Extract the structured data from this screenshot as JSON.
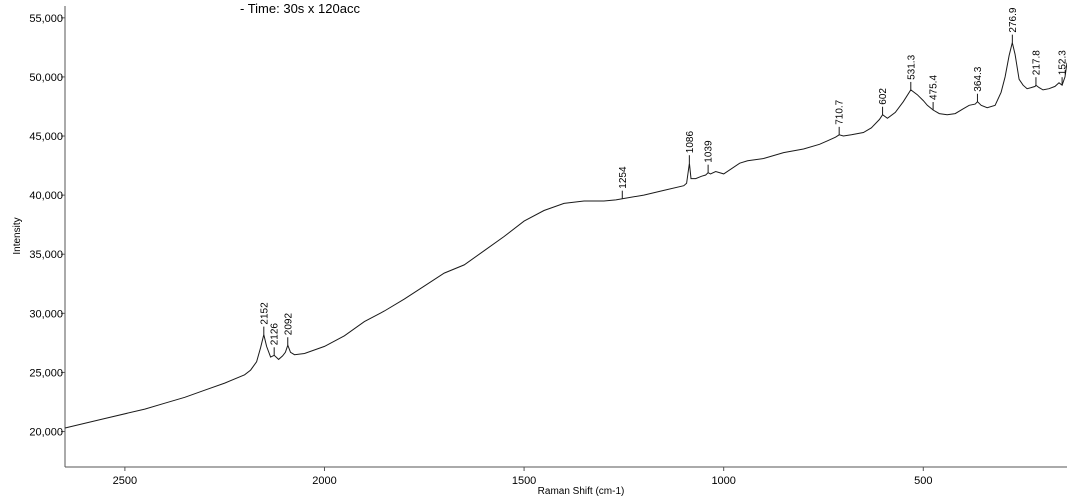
{
  "header_note": "-   Time: 30s x 120acc",
  "chart_data": {
    "type": "line",
    "title": "",
    "xlabel": "Raman Shift (cm-1)",
    "ylabel": "Intensity",
    "x_reversed": true,
    "xlim": [
      2650,
      140
    ],
    "ylim": [
      17000,
      56000
    ],
    "x_ticks": [
      2500,
      2000,
      1500,
      1000,
      500
    ],
    "x_tick_labels": [
      "2500",
      "2000",
      "1500",
      "1000",
      "500"
    ],
    "y_ticks": [
      20000,
      25000,
      30000,
      35000,
      40000,
      45000,
      50000,
      55000
    ],
    "y_tick_labels": [
      "20,000",
      "25,000",
      "30,000",
      "35,000",
      "40,000",
      "45,000",
      "50,000",
      "55,000"
    ],
    "grid": false,
    "line_color": "#1a1a1a",
    "series": [
      {
        "x": [
          2650,
          2550,
          2450,
          2400,
          2350,
          2300,
          2250,
          2200,
          2185,
          2170,
          2160,
          2152,
          2145,
          2135,
          2126,
          2115,
          2105,
          2098,
          2092,
          2085,
          2075,
          2050,
          2000,
          1950,
          1900,
          1850,
          1800,
          1750,
          1700,
          1650,
          1600,
          1550,
          1500,
          1450,
          1400,
          1350,
          1300,
          1270,
          1254,
          1200,
          1150,
          1100,
          1093,
          1086,
          1082,
          1070,
          1055,
          1045,
          1039,
          1033,
          1020,
          1000,
          960,
          940,
          900,
          850,
          800,
          760,
          740,
          720,
          710.7,
          700,
          680,
          650,
          630,
          610,
          602,
          590,
          570,
          550,
          531.3,
          515,
          500,
          490,
          475.4,
          460,
          440,
          420,
          400,
          385,
          370,
          364.3,
          355,
          340,
          320,
          305,
          295,
          285,
          276.9,
          270,
          260,
          250,
          240,
          230,
          220,
          217.8,
          210,
          200,
          185,
          170,
          160,
          152.3,
          145,
          140
        ],
        "y": [
          20300,
          21100,
          21900,
          22400,
          22900,
          23500,
          24100,
          24800,
          25200,
          25900,
          27100,
          28200,
          27200,
          26300,
          26450,
          26100,
          26400,
          26700,
          27300,
          26700,
          26500,
          26600,
          27200,
          28100,
          29300,
          30200,
          31200,
          32300,
          33400,
          34100,
          35300,
          36500,
          37800,
          38700,
          39300,
          39500,
          39500,
          39600,
          39700,
          40000,
          40400,
          40800,
          41000,
          42700,
          41400,
          41400,
          41600,
          41700,
          41900,
          41800,
          42000,
          41800,
          42700,
          42900,
          43100,
          43600,
          43900,
          44300,
          44600,
          44900,
          45100,
          45000,
          45100,
          45300,
          45700,
          46400,
          46800,
          46500,
          47000,
          47900,
          48900,
          48500,
          48000,
          47600,
          47200,
          46900,
          46800,
          46900,
          47300,
          47600,
          47700,
          47900,
          47600,
          47400,
          47600,
          48700,
          50000,
          51800,
          52900,
          51900,
          49800,
          49300,
          49000,
          49100,
          49200,
          49300,
          49100,
          48900,
          49000,
          49200,
          49500,
          49300,
          50000,
          51200
        ]
      }
    ],
    "peak_labels": [
      {
        "x": 2152,
        "y": 28200,
        "label": "2152"
      },
      {
        "x": 2126,
        "y": 26450,
        "label": "2126"
      },
      {
        "x": 2092,
        "y": 27300,
        "label": "2092"
      },
      {
        "x": 1254,
        "y": 39700,
        "label": "1254"
      },
      {
        "x": 1086,
        "y": 42700,
        "label": "1086"
      },
      {
        "x": 1039,
        "y": 41900,
        "label": "1039"
      },
      {
        "x": 710.7,
        "y": 45100,
        "label": "710.7"
      },
      {
        "x": 602,
        "y": 46800,
        "label": "602"
      },
      {
        "x": 531.3,
        "y": 48900,
        "label": "531.3"
      },
      {
        "x": 475.4,
        "y": 47200,
        "label": "475.4"
      },
      {
        "x": 364.3,
        "y": 47900,
        "label": "364.3"
      },
      {
        "x": 276.9,
        "y": 52900,
        "label": "276.9"
      },
      {
        "x": 217.8,
        "y": 49300,
        "label": "217.8"
      },
      {
        "x": 152.3,
        "y": 49300,
        "label": "152.3"
      }
    ]
  }
}
